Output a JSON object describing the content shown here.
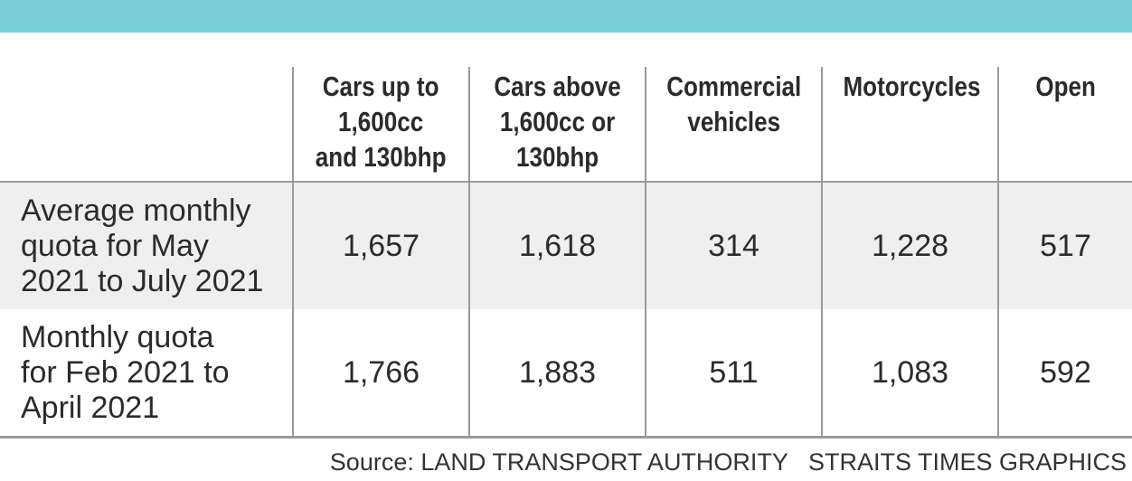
{
  "colors": {
    "top_band": "#78cdd8",
    "shaded_row": "#efefef",
    "rule": "#9a9a9a"
  },
  "chart_data": {
    "type": "table",
    "columns": [
      "Cars up to 1,600cc and 130bhp",
      "Cars above 1,600cc or 130bhp",
      "Commercial vehicles",
      "Motorcycles",
      "Open"
    ],
    "rows": [
      {
        "label": "Average monthly quota for May 2021 to July 2021",
        "values": [
          "1,657",
          "1,618",
          "314",
          "1,228",
          "517"
        ]
      },
      {
        "label": "Monthly quota for Feb 2021 to April 2021",
        "values": [
          "1,766",
          "1,883",
          "511",
          "1,083",
          "592"
        ]
      }
    ]
  },
  "header": {
    "col1_lines": [
      "Cars up to",
      "1,600cc",
      "and 130bhp"
    ],
    "col2_lines": [
      "Cars above",
      "1,600cc or",
      "130bhp"
    ],
    "col3_lines": [
      "Commercial",
      "vehicles"
    ],
    "col4_lines": [
      "Motorcycles"
    ],
    "col5_lines": [
      "Open"
    ]
  },
  "row_labels": {
    "row1_lines": [
      "Average monthly",
      "quota for May",
      "2021 to July 2021"
    ],
    "row2_lines": [
      "Monthly quota",
      "for Feb 2021 to",
      "April 2021"
    ]
  },
  "footer": {
    "source": "Source: LAND TRANSPORT AUTHORITY",
    "credit": "STRAITS TIMES GRAPHICS"
  }
}
